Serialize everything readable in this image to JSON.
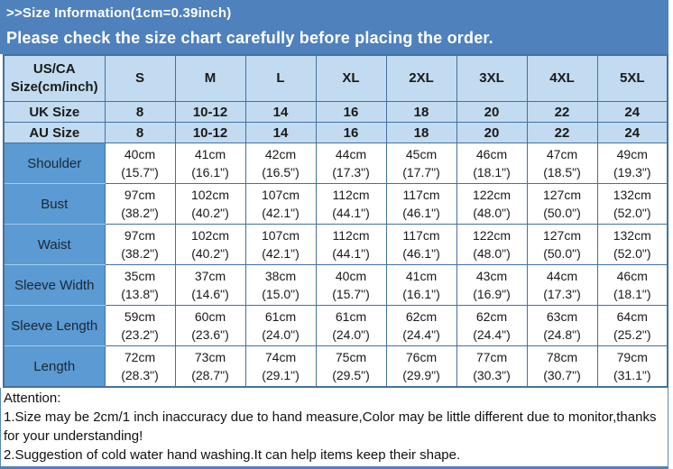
{
  "header": {
    "title": ">>Size Information(1cm=0.39inch)",
    "subtitle": "Please check the size chart carefully before placing the order."
  },
  "table": {
    "corner": [
      "US/CA",
      "Size(cm/inch)"
    ],
    "sizes": [
      "S",
      "M",
      "L",
      "XL",
      "2XL",
      "3XL",
      "4XL",
      "5XL"
    ],
    "uk": {
      "label": "UK Size",
      "values": [
        "8",
        "10-12",
        "14",
        "16",
        "18",
        "20",
        "22",
        "24"
      ]
    },
    "au": {
      "label": "AU Size",
      "values": [
        "8",
        "10-12",
        "14",
        "16",
        "18",
        "20",
        "22",
        "24"
      ]
    },
    "measurements": [
      {
        "label": "Shoulder",
        "cells": [
          [
            "40cm",
            "(15.7\")"
          ],
          [
            "41cm",
            "(16.1\")"
          ],
          [
            "42cm",
            "(16.5\")"
          ],
          [
            "44cm",
            "(17.3\")"
          ],
          [
            "45cm",
            "(17.7\")"
          ],
          [
            "46cm",
            "(18.1\")"
          ],
          [
            "47cm",
            "(18.5\")"
          ],
          [
            "49cm",
            "(19.3\")"
          ]
        ]
      },
      {
        "label": "Bust",
        "cells": [
          [
            "97cm",
            "(38.2\")"
          ],
          [
            "102cm",
            "(40.2\")"
          ],
          [
            "107cm",
            "(42.1\")"
          ],
          [
            "112cm",
            "(44.1\")"
          ],
          [
            "117cm",
            "(46.1\")"
          ],
          [
            "122cm",
            "(48.0\")"
          ],
          [
            "127cm",
            "(50.0\")"
          ],
          [
            "132cm",
            "(52.0\")"
          ]
        ]
      },
      {
        "label": "Waist",
        "cells": [
          [
            "97cm",
            "(38.2\")"
          ],
          [
            "102cm",
            "(40.2\")"
          ],
          [
            "107cm",
            "(42.1\")"
          ],
          [
            "112cm",
            "(44.1\")"
          ],
          [
            "117cm",
            "(46.1\")"
          ],
          [
            "122cm",
            "(48.0\")"
          ],
          [
            "127cm",
            "(50.0\")"
          ],
          [
            "132cm",
            "(52.0\")"
          ]
        ]
      },
      {
        "label": "Sleeve Width",
        "cells": [
          [
            "35cm",
            "(13.8\")"
          ],
          [
            "37cm",
            "(14.6\")"
          ],
          [
            "38cm",
            "(15.0\")"
          ],
          [
            "40cm",
            "(15.7\")"
          ],
          [
            "41cm",
            "(16.1\")"
          ],
          [
            "43cm",
            "(16.9\")"
          ],
          [
            "44cm",
            "(17.3\")"
          ],
          [
            "46cm",
            "(18.1\")"
          ]
        ]
      },
      {
        "label": "Sleeve Length",
        "cells": [
          [
            "59cm",
            "(23.2\")"
          ],
          [
            "60cm",
            "(23.6\")"
          ],
          [
            "61cm",
            "(24.0\")"
          ],
          [
            "61cm",
            "(24.0\")"
          ],
          [
            "62cm",
            "(24.4\")"
          ],
          [
            "62cm",
            "(24.4\")"
          ],
          [
            "63cm",
            "(24.8\")"
          ],
          [
            "64cm",
            "(25.2\")"
          ]
        ]
      },
      {
        "label": "Length",
        "cells": [
          [
            "72cm",
            "(28.3\")"
          ],
          [
            "73cm",
            "(28.7\")"
          ],
          [
            "74cm",
            "(29.1\")"
          ],
          [
            "75cm",
            "(29.5\")"
          ],
          [
            "76cm",
            "(29.9\")"
          ],
          [
            "77cm",
            "(30.3\")"
          ],
          [
            "78cm",
            "(30.7\")"
          ],
          [
            "79cm",
            "(31.1\")"
          ]
        ]
      }
    ]
  },
  "attention": {
    "title": "Attention:",
    "notes": [
      "1.Size may be 2cm/1 inch inaccuracy due to hand measure,Color may be little different due to monitor,thanks for your understanding!",
      "2.Suggestion of cold water hand washing.It can help items keep their shape."
    ]
  },
  "colors": {
    "banner": "#4f81bd",
    "header_cell": "#c2dbf0",
    "label_cell": "#5b9ad2",
    "border": "#44719f"
  }
}
